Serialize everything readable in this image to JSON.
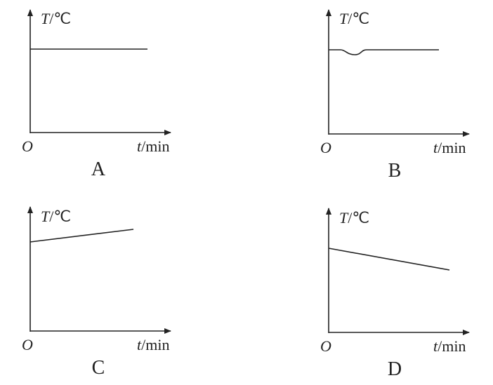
{
  "panels": [
    {
      "caption": "A",
      "y_axis": {
        "symbol": "T",
        "unit": "/℃"
      },
      "x_axis": {
        "symbol": "t",
        "unit": "/min"
      },
      "origin": "O"
    },
    {
      "caption": "B",
      "y_axis": {
        "symbol": "T",
        "unit": "/℃"
      },
      "x_axis": {
        "symbol": "t",
        "unit": "/min"
      },
      "origin": "O"
    },
    {
      "caption": "C",
      "y_axis": {
        "symbol": "T",
        "unit": "/℃"
      },
      "x_axis": {
        "symbol": "t",
        "unit": "/min"
      },
      "origin": "O"
    },
    {
      "caption": "D",
      "y_axis": {
        "symbol": "T",
        "unit": "/℃"
      },
      "x_axis": {
        "symbol": "t",
        "unit": "/min"
      },
      "origin": "O"
    }
  ]
}
